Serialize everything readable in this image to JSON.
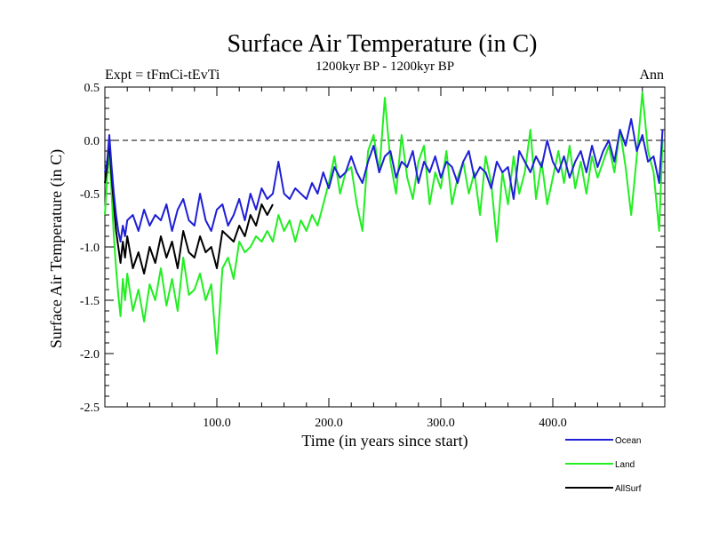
{
  "chart_data": {
    "type": "line",
    "title": "Surface Air Temperature (in C)",
    "subtitle": "1200kyr BP - 1200kyr BP",
    "left_label": "Expt = tFmCi-tEvTi",
    "right_label": "Ann",
    "xlabel": "Time (in years since start)",
    "ylabel": "Surface Air Temperature (in C)",
    "xlim": [
      0,
      500
    ],
    "ylim": [
      -2.5,
      0.5
    ],
    "x_ticks": [
      100,
      200,
      300,
      400
    ],
    "x_tick_labels": [
      "100.0",
      "200.0",
      "300.0",
      "400.0"
    ],
    "y_ticks": [
      0.5,
      0,
      -0.5,
      -1,
      -1.5,
      -2,
      -2.5
    ],
    "y_tick_labels": [
      "0.5",
      "0.0",
      "-0.5",
      "-1.0",
      "-1.5",
      "-2.0",
      "-2.5"
    ],
    "reference_line": 0.0,
    "legend_position": "bottom-right",
    "series": [
      {
        "name": "Ocean",
        "color": "#1f1fd6",
        "x": [
          0,
          2,
          4,
          6,
          8,
          10,
          12,
          14,
          16,
          18,
          20,
          25,
          30,
          35,
          40,
          45,
          50,
          55,
          60,
          65,
          70,
          75,
          80,
          85,
          90,
          95,
          100,
          105,
          110,
          115,
          120,
          125,
          130,
          135,
          140,
          145,
          150,
          155,
          160,
          165,
          170,
          175,
          180,
          185,
          190,
          195,
          200,
          205,
          210,
          215,
          220,
          225,
          230,
          235,
          240,
          245,
          250,
          255,
          260,
          265,
          270,
          275,
          280,
          285,
          290,
          295,
          300,
          305,
          310,
          315,
          320,
          325,
          330,
          335,
          340,
          345,
          350,
          355,
          360,
          365,
          370,
          375,
          380,
          385,
          390,
          395,
          400,
          405,
          410,
          415,
          420,
          425,
          430,
          435,
          440,
          445,
          450,
          455,
          460,
          465,
          470,
          475,
          480,
          485,
          490,
          495,
          498
        ],
        "values": [
          -0.3,
          -0.2,
          0.05,
          -0.25,
          -0.5,
          -0.7,
          -0.85,
          -0.95,
          -0.8,
          -0.9,
          -0.75,
          -0.7,
          -0.85,
          -0.65,
          -0.8,
          -0.7,
          -0.75,
          -0.6,
          -0.85,
          -0.65,
          -0.55,
          -0.75,
          -0.8,
          -0.5,
          -0.75,
          -0.85,
          -0.65,
          -0.6,
          -0.8,
          -0.7,
          -0.55,
          -0.75,
          -0.5,
          -0.65,
          -0.45,
          -0.55,
          -0.5,
          -0.2,
          -0.5,
          -0.55,
          -0.45,
          -0.5,
          -0.55,
          -0.4,
          -0.5,
          -0.3,
          -0.45,
          -0.25,
          -0.35,
          -0.3,
          -0.15,
          -0.3,
          -0.4,
          -0.2,
          -0.05,
          -0.3,
          -0.15,
          -0.1,
          -0.35,
          -0.2,
          -0.25,
          -0.1,
          -0.4,
          -0.2,
          -0.3,
          -0.15,
          -0.35,
          -0.2,
          -0.25,
          -0.4,
          -0.2,
          -0.1,
          -0.35,
          -0.25,
          -0.3,
          -0.45,
          -0.2,
          -0.3,
          -0.25,
          -0.55,
          -0.1,
          -0.2,
          -0.3,
          -0.15,
          -0.25,
          0.0,
          -0.2,
          -0.3,
          -0.15,
          -0.35,
          -0.2,
          -0.1,
          -0.3,
          -0.05,
          -0.25,
          -0.1,
          0.0,
          -0.2,
          0.1,
          -0.05,
          0.2,
          -0.1,
          0.05,
          -0.2,
          -0.15,
          -0.4,
          0.1
        ]
      },
      {
        "name": "Land",
        "color": "#22ee22",
        "x": [
          0,
          2,
          4,
          6,
          8,
          10,
          12,
          14,
          16,
          18,
          20,
          25,
          30,
          35,
          40,
          45,
          50,
          55,
          60,
          65,
          70,
          75,
          80,
          85,
          90,
          95,
          100,
          105,
          110,
          115,
          120,
          125,
          130,
          135,
          140,
          145,
          150,
          155,
          160,
          165,
          170,
          175,
          180,
          185,
          190,
          195,
          200,
          205,
          210,
          215,
          220,
          225,
          230,
          235,
          240,
          245,
          250,
          255,
          260,
          265,
          270,
          275,
          280,
          285,
          290,
          295,
          300,
          305,
          310,
          315,
          320,
          325,
          330,
          335,
          340,
          345,
          350,
          355,
          360,
          365,
          370,
          375,
          380,
          385,
          390,
          395,
          400,
          405,
          410,
          415,
          420,
          425,
          430,
          435,
          440,
          445,
          450,
          455,
          460,
          465,
          470,
          475,
          480,
          485,
          490,
          495,
          498
        ],
        "values": [
          -0.7,
          -0.35,
          -0.1,
          -0.5,
          -0.9,
          -1.2,
          -1.45,
          -1.65,
          -1.3,
          -1.5,
          -1.25,
          -1.6,
          -1.4,
          -1.7,
          -1.35,
          -1.5,
          -1.2,
          -1.55,
          -1.3,
          -1.6,
          -1.1,
          -1.45,
          -1.4,
          -1.25,
          -1.5,
          -1.35,
          -2.0,
          -1.2,
          -1.1,
          -1.3,
          -0.95,
          -1.05,
          -1.0,
          -0.9,
          -0.95,
          -0.85,
          -0.95,
          -0.7,
          -0.85,
          -0.75,
          -0.95,
          -0.75,
          -0.85,
          -0.7,
          -0.8,
          -0.6,
          -0.4,
          -0.15,
          -0.5,
          -0.3,
          -0.25,
          -0.6,
          -0.85,
          -0.1,
          0.05,
          -0.3,
          0.4,
          -0.2,
          -0.5,
          0.05,
          -0.35,
          -0.55,
          -0.2,
          -0.05,
          -0.6,
          -0.3,
          -0.45,
          -0.1,
          -0.6,
          -0.35,
          -0.2,
          -0.5,
          -0.3,
          -0.7,
          -0.15,
          -0.4,
          -0.95,
          -0.3,
          -0.6,
          -0.15,
          -0.5,
          -0.3,
          0.1,
          -0.55,
          -0.2,
          -0.6,
          -0.35,
          -0.1,
          -0.4,
          -0.05,
          -0.45,
          -0.2,
          -0.5,
          -0.15,
          -0.35,
          -0.2,
          -0.05,
          -0.3,
          0.1,
          -0.25,
          -0.7,
          -0.15,
          0.45,
          -0.1,
          -0.3,
          -0.85,
          0.0
        ]
      },
      {
        "name": "AllSurf",
        "color": "#000000",
        "x": [
          0,
          2,
          4,
          6,
          8,
          10,
          12,
          14,
          16,
          18,
          20,
          25,
          30,
          35,
          40,
          45,
          50,
          55,
          60,
          65,
          70,
          75,
          80,
          85,
          90,
          95,
          100,
          105,
          110,
          115,
          120,
          125,
          130,
          135,
          140,
          145,
          150
        ],
        "values": [
          -0.4,
          -0.25,
          0.0,
          -0.35,
          -0.6,
          -0.85,
          -1.0,
          -1.15,
          -0.95,
          -1.1,
          -0.9,
          -1.2,
          -1.05,
          -1.25,
          -1.0,
          -1.15,
          -0.9,
          -1.1,
          -0.95,
          -1.2,
          -0.85,
          -1.05,
          -1.1,
          -0.9,
          -1.05,
          -1.0,
          -1.2,
          -0.85,
          -0.9,
          -0.95,
          -0.8,
          -0.9,
          -0.7,
          -0.8,
          -0.6,
          -0.7,
          -0.6
        ]
      }
    ]
  }
}
